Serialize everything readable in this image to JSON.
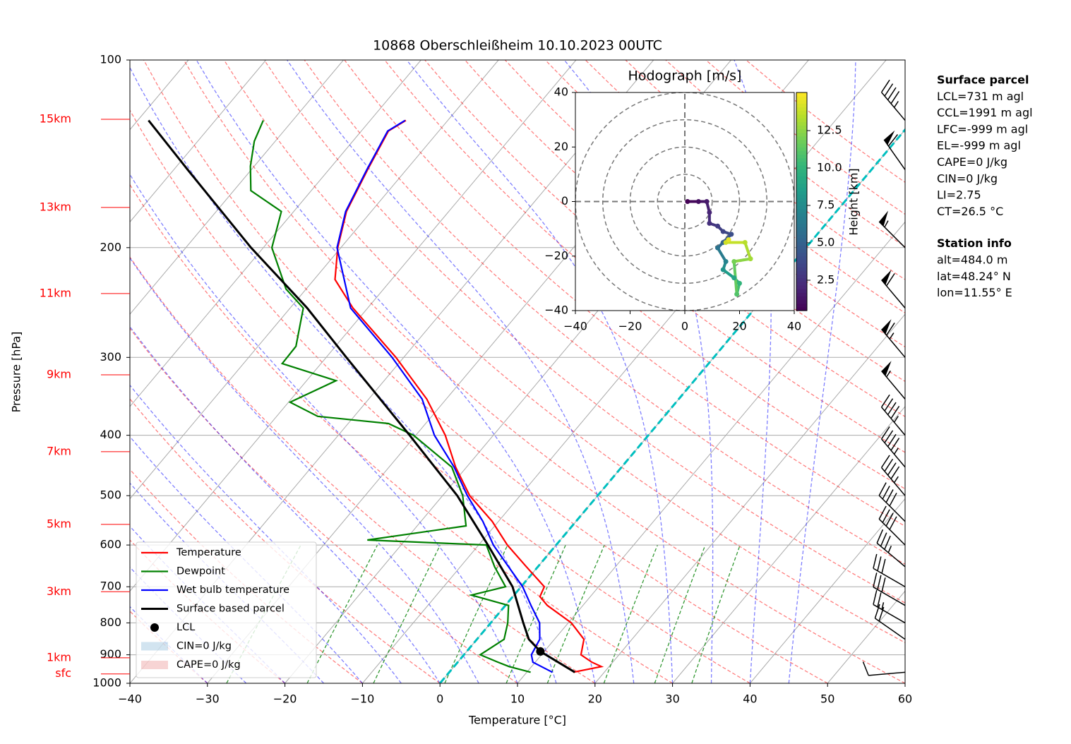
{
  "chart_data": [
    {
      "type": "skewt",
      "title": "10868 Oberschleißheim 10.10.2023 00UTC",
      "xlabel": "Temperature [°C]",
      "ylabel": "Pressure [hPa]",
      "xlim": [
        -40,
        60
      ],
      "ylim": [
        1000,
        100
      ],
      "yscale": "log",
      "xticks": [
        {
          "value": -40,
          "label": "−40"
        },
        {
          "value": -30,
          "label": "−30"
        },
        {
          "value": -20,
          "label": "−20"
        },
        {
          "value": -10,
          "label": "−10"
        },
        0,
        10,
        20,
        30,
        40,
        50,
        60
      ],
      "yticks": [
        100,
        200,
        300,
        400,
        500,
        600,
        700,
        800,
        900,
        1000
      ],
      "grid": true,
      "series": [
        {
          "name": "Temperature",
          "color": "#ff0000",
          "pressure": [
            960,
            940,
            925,
            900,
            850,
            800,
            750,
            726,
            700,
            650,
            600,
            550,
            500,
            450,
            400,
            350,
            300,
            250,
            225,
            200,
            175,
            150,
            130,
            125
          ],
          "values": [
            16.0,
            19.0,
            17.3,
            15.1,
            13.8,
            10.4,
            5.4,
            3.5,
            3.0,
            -1.5,
            -6.3,
            -10.8,
            -16.5,
            -21.4,
            -26.2,
            -32.5,
            -41.0,
            -51.9,
            -57.3,
            -60.4,
            -63.2,
            -65.0,
            -66.5,
            -65.4
          ]
        },
        {
          "name": "Dewpoint",
          "color": "#008000",
          "pressure": [
            960,
            940,
            925,
            900,
            850,
            800,
            750,
            722,
            700,
            650,
            600,
            589,
            559,
            500,
            450,
            400,
            383,
            373,
            354,
            327,
            307,
            288,
            250,
            233,
            200,
            175,
            162,
            148,
            135,
            125
          ],
          "values": [
            10.5,
            7.1,
            5.2,
            2.1,
            3.5,
            2.2,
            0.4,
            -5.5,
            -2.0,
            -5.6,
            -9.0,
            -24.9,
            -13.7,
            -17.4,
            -21.9,
            -30.3,
            -34.8,
            -44.7,
            -49.8,
            -46.2,
            -55.0,
            -55.1,
            -58.3,
            -62.6,
            -68.9,
            -71.6,
            -77.8,
            -80.5,
            -82.7,
            -83.8
          ]
        },
        {
          "name": "Wet bulb temperature",
          "color": "#0000ff",
          "pressure": [
            960,
            925,
            900,
            850,
            800,
            750,
            700,
            650,
            600,
            550,
            500,
            450,
            400,
            350,
            300,
            250,
            200,
            175,
            150,
            130,
            125
          ],
          "values": [
            13.3,
            9.7,
            8.7,
            8.1,
            6.3,
            3.3,
            0.2,
            -3.8,
            -8.1,
            -12.0,
            -16.8,
            -21.6,
            -27.6,
            -33.1,
            -41.5,
            -52.2,
            -60.5,
            -63.3,
            -65.1,
            -66.6,
            -65.5
          ]
        },
        {
          "name": "Surface based parcel",
          "color": "#000000",
          "pressure": [
            960,
            889,
            850,
            800,
            700,
            600,
            500,
            400,
            300,
            250,
            200,
            150,
            125
          ],
          "values": [
            16.2,
            9.5,
            6.7,
            4.2,
            -1.1,
            -8.8,
            -18.1,
            -30.8,
            -47.4,
            -57.8,
            -71.6,
            -88.2,
            -98.6
          ]
        }
      ],
      "lcl": {
        "name": "LCL",
        "pressure": 889,
        "temperature": 9.5,
        "color": "#000000"
      },
      "patches": [
        {
          "label": "CIN=0 J/kg",
          "color": "#1f77b4"
        },
        {
          "label": "CAPE=0 J/kg",
          "color": "#d62728"
        }
      ],
      "height_labels": [
        {
          "label": "15km",
          "pressure": 124.5
        },
        {
          "label": "13km",
          "pressure": 172.4
        },
        {
          "label": "11km",
          "pressure": 237
        },
        {
          "label": "9km",
          "pressure": 320
        },
        {
          "label": "7km",
          "pressure": 425
        },
        {
          "label": "5km",
          "pressure": 556
        },
        {
          "label": "3km",
          "pressure": 713
        },
        {
          "label": "1km",
          "pressure": 910
        },
        {
          "label": "sfc",
          "pressure": 966
        }
      ],
      "wind": [
        {
          "pressure": 125,
          "direction": 320,
          "speed": 45
        },
        {
          "pressure": 150,
          "direction": 325,
          "speed": 60
        },
        {
          "pressure": 200,
          "direction": 315,
          "speed": 55
        },
        {
          "pressure": 250,
          "direction": 320,
          "speed": 60
        },
        {
          "pressure": 300,
          "direction": 320,
          "speed": 65
        },
        {
          "pressure": 350,
          "direction": 320,
          "speed": 55
        },
        {
          "pressure": 400,
          "direction": 320,
          "speed": 45
        },
        {
          "pressure": 450,
          "direction": 320,
          "speed": 45
        },
        {
          "pressure": 500,
          "direction": 320,
          "speed": 45
        },
        {
          "pressure": 550,
          "direction": 315,
          "speed": 40
        },
        {
          "pressure": 600,
          "direction": 315,
          "speed": 40
        },
        {
          "pressure": 650,
          "direction": 310,
          "speed": 35
        },
        {
          "pressure": 700,
          "direction": 300,
          "speed": 30
        },
        {
          "pressure": 750,
          "direction": 300,
          "speed": 30
        },
        {
          "pressure": 800,
          "direction": 300,
          "speed": 25
        },
        {
          "pressure": 850,
          "direction": 305,
          "speed": 20
        },
        {
          "pressure": 960,
          "direction": 265,
          "speed": 10
        }
      ]
    },
    {
      "type": "hodograph",
      "title": "Hodograph [m/s]",
      "xlim": [
        -40,
        40
      ],
      "ylim": [
        -40,
        40
      ],
      "xticks": [
        {
          "value": -40,
          "label": "−40"
        },
        {
          "value": -20,
          "label": "−20"
        },
        0,
        20,
        40
      ],
      "yticks": [
        {
          "value": -40,
          "label": "−40"
        },
        {
          "value": -20,
          "label": "−20"
        },
        0,
        20,
        40
      ],
      "rings": [
        10,
        20,
        30,
        40
      ],
      "u": [
        1,
        5,
        8,
        9,
        9,
        12,
        14,
        17,
        14,
        12,
        15,
        14,
        18,
        20,
        19,
        18,
        24,
        22,
        15,
        16
      ],
      "v": [
        0,
        0,
        0,
        -4,
        -8,
        -9,
        -11,
        -12,
        -15,
        -17,
        -22,
        -25,
        -28,
        -30,
        -34,
        -22,
        -21,
        -15,
        -15,
        -14
      ],
      "height": [
        0.5,
        1,
        1.5,
        2,
        2.5,
        3,
        3.5,
        4,
        5,
        6,
        7,
        8,
        9,
        10,
        11,
        12,
        13,
        13.5,
        14,
        14.5
      ],
      "colorbar": {
        "label": "Height [km]",
        "clim": [
          0.47,
          15.05
        ],
        "ticks": [
          2.5,
          {
            "value": 5,
            "label": "5.0"
          },
          7.5,
          {
            "value": 10,
            "label": "10.0"
          },
          12.5
        ]
      }
    }
  ],
  "parcel_info": {
    "title": "Surface parcel",
    "lines": [
      "LCL=731 m agl",
      "CCL=1991 m agl",
      "LFC=-999 m agl",
      "EL=-999 m agl",
      "CAPE=0 J/kg",
      "CIN=0 J/kg",
      "LI=2.75",
      "CT=26.5 °C"
    ]
  },
  "station_info": {
    "title": "Station info",
    "lines": [
      "alt=484.0 m",
      "lat=48.24° N",
      "lon=11.55° E"
    ]
  }
}
